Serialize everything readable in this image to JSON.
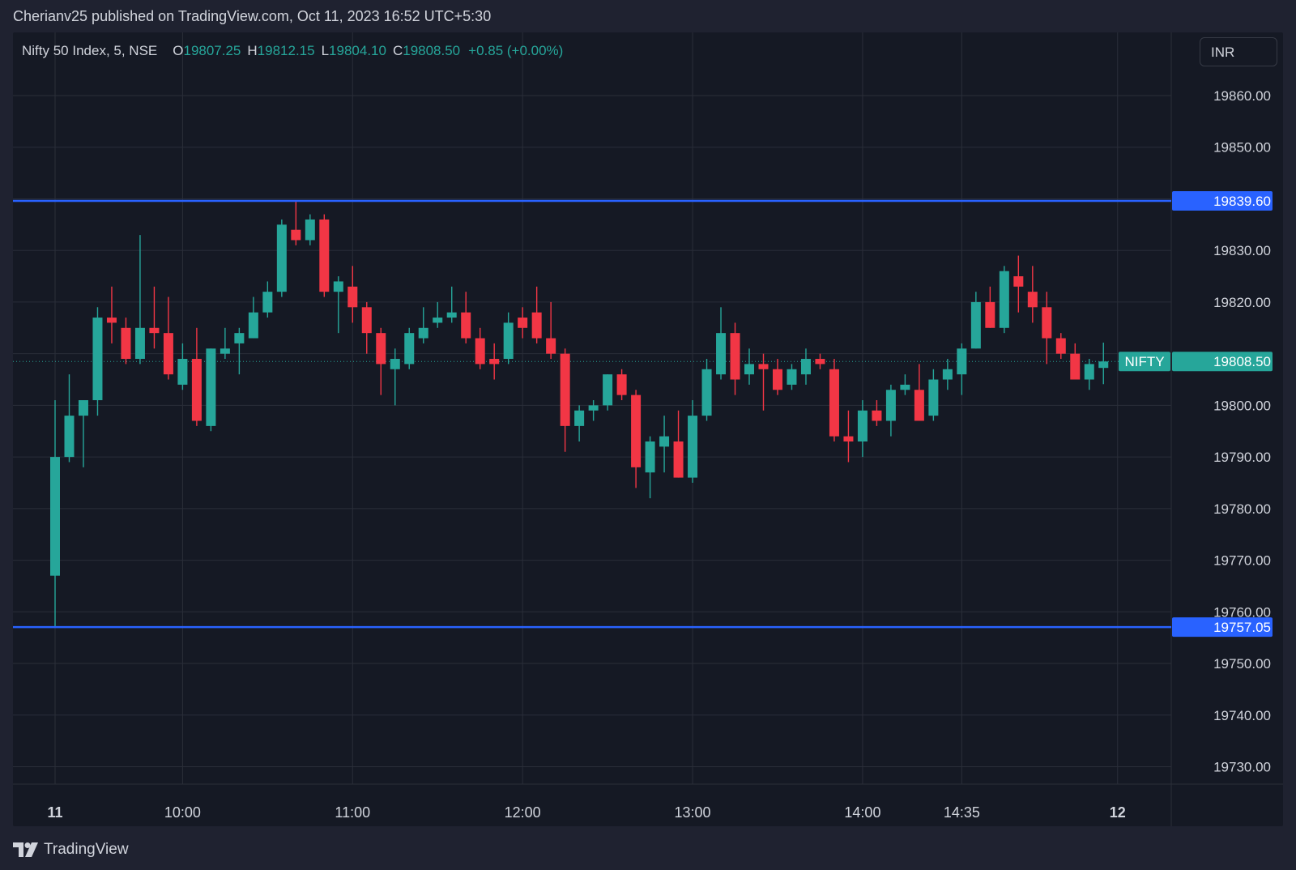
{
  "header": {
    "published_line": "Cherianv25 published on TradingView.com, Oct 11, 2023 16:52 UTC+5:30"
  },
  "legend": {
    "symbol": "Nifty 50 Index, 5, NSE",
    "open_label": "O",
    "open_value": "19807.25",
    "high_label": "H",
    "high_value": "19812.15",
    "low_label": "L",
    "low_value": "19804.10",
    "close_label": "C",
    "close_value": "19808.50",
    "change": "+0.85 (+0.00%)"
  },
  "currency_button": "INR",
  "footer": {
    "brand": "TradingView"
  },
  "colors": {
    "up": "#26a69a",
    "down": "#f23645",
    "hline": "#2962ff",
    "grid": "#2a2e39",
    "text": "#d1d4dc",
    "background": "#151924"
  },
  "chart_data": {
    "type": "candlestick",
    "yticks": [
      19860,
      19850,
      19840,
      19830,
      19820,
      19810,
      19800,
      19790,
      19780,
      19770,
      19760,
      19750,
      19740,
      19730
    ],
    "ytick_labels": [
      "19860.00",
      "19850.00",
      "",
      "19830.00",
      "19820.00",
      "",
      "19800.00",
      "19790.00",
      "19780.00",
      "19770.00",
      "19760.00",
      "19750.00",
      "19740.00",
      "19730.00"
    ],
    "xticks": [
      {
        "label": "11",
        "index": 0,
        "bold": true
      },
      {
        "label": "10:00",
        "index": 9
      },
      {
        "label": "11:00",
        "index": 21
      },
      {
        "label": "12:00",
        "index": 33
      },
      {
        "label": "13:00",
        "index": 45
      },
      {
        "label": "14:00",
        "index": 57
      },
      {
        "label": "14:35",
        "index": 64
      },
      {
        "label": "12",
        "index": 75,
        "bold": true
      }
    ],
    "horizontal_lines": [
      {
        "value": 19839.6,
        "label": "19839.60"
      },
      {
        "value": 19757.05,
        "label": "19757.05"
      }
    ],
    "last_price": {
      "value": 19808.5,
      "label": "19808.50",
      "name": "NIFTY"
    },
    "candles": [
      {
        "o": 19767,
        "h": 19801,
        "l": 19757.05,
        "c": 19790
      },
      {
        "o": 19790,
        "h": 19806,
        "l": 19789,
        "c": 19798
      },
      {
        "o": 19798,
        "h": 19801,
        "l": 19788,
        "c": 19801
      },
      {
        "o": 19801,
        "h": 19819,
        "l": 19798,
        "c": 19817
      },
      {
        "o": 19817,
        "h": 19823,
        "l": 19812,
        "c": 19816
      },
      {
        "o": 19815,
        "h": 19817,
        "l": 19808,
        "c": 19809
      },
      {
        "o": 19809,
        "h": 19833,
        "l": 19808,
        "c": 19815
      },
      {
        "o": 19815,
        "h": 19823,
        "l": 19811,
        "c": 19814
      },
      {
        "o": 19814,
        "h": 19821,
        "l": 19805,
        "c": 19806
      },
      {
        "o": 19804,
        "h": 19812,
        "l": 19803,
        "c": 19809
      },
      {
        "o": 19809,
        "h": 19815,
        "l": 19796,
        "c": 19797
      },
      {
        "o": 19796,
        "h": 19811,
        "l": 19795,
        "c": 19811
      },
      {
        "o": 19810,
        "h": 19815,
        "l": 19809,
        "c": 19811
      },
      {
        "o": 19812,
        "h": 19815,
        "l": 19806,
        "c": 19814
      },
      {
        "o": 19813,
        "h": 19821,
        "l": 19813,
        "c": 19818
      },
      {
        "o": 19818,
        "h": 19824,
        "l": 19817,
        "c": 19822
      },
      {
        "o": 19822,
        "h": 19836,
        "l": 19821,
        "c": 19835
      },
      {
        "o": 19834,
        "h": 19839.6,
        "l": 19831,
        "c": 19832
      },
      {
        "o": 19832,
        "h": 19837,
        "l": 19831,
        "c": 19836
      },
      {
        "o": 19836,
        "h": 19837,
        "l": 19821,
        "c": 19822
      },
      {
        "o": 19822,
        "h": 19825,
        "l": 19814,
        "c": 19824
      },
      {
        "o": 19823,
        "h": 19827,
        "l": 19816,
        "c": 19819
      },
      {
        "o": 19819,
        "h": 19820,
        "l": 19810,
        "c": 19814
      },
      {
        "o": 19814,
        "h": 19815,
        "l": 19802,
        "c": 19808
      },
      {
        "o": 19807,
        "h": 19811,
        "l": 19800,
        "c": 19809
      },
      {
        "o": 19808,
        "h": 19815,
        "l": 19807,
        "c": 19814
      },
      {
        "o": 19813,
        "h": 19819,
        "l": 19812,
        "c": 19815
      },
      {
        "o": 19816,
        "h": 19820,
        "l": 19815,
        "c": 19817
      },
      {
        "o": 19817,
        "h": 19823,
        "l": 19816,
        "c": 19818
      },
      {
        "o": 19818,
        "h": 19822,
        "l": 19812,
        "c": 19813
      },
      {
        "o": 19813,
        "h": 19815,
        "l": 19807,
        "c": 19808
      },
      {
        "o": 19809,
        "h": 19812,
        "l": 19805,
        "c": 19808
      },
      {
        "o": 19809,
        "h": 19818,
        "l": 19808,
        "c": 19816
      },
      {
        "o": 19817,
        "h": 19819,
        "l": 19813,
        "c": 19815
      },
      {
        "o": 19818,
        "h": 19823,
        "l": 19812,
        "c": 19813
      },
      {
        "o": 19813,
        "h": 19820,
        "l": 19809,
        "c": 19810
      },
      {
        "o": 19810,
        "h": 19811,
        "l": 19791,
        "c": 19796
      },
      {
        "o": 19796,
        "h": 19800,
        "l": 19793,
        "c": 19799
      },
      {
        "o": 19799,
        "h": 19801,
        "l": 19797,
        "c": 19800
      },
      {
        "o": 19800,
        "h": 19806,
        "l": 19799,
        "c": 19806
      },
      {
        "o": 19806,
        "h": 19807,
        "l": 19801,
        "c": 19802
      },
      {
        "o": 19802,
        "h": 19803,
        "l": 19784,
        "c": 19788
      },
      {
        "o": 19787,
        "h": 19794,
        "l": 19782,
        "c": 19793
      },
      {
        "o": 19792,
        "h": 19798,
        "l": 19787,
        "c": 19794
      },
      {
        "o": 19793,
        "h": 19799,
        "l": 19786,
        "c": 19786
      },
      {
        "o": 19786,
        "h": 19801,
        "l": 19785,
        "c": 19798
      },
      {
        "o": 19798,
        "h": 19809,
        "l": 19797,
        "c": 19807
      },
      {
        "o": 19806,
        "h": 19819,
        "l": 19805,
        "c": 19814
      },
      {
        "o": 19814,
        "h": 19816,
        "l": 19802,
        "c": 19805
      },
      {
        "o": 19806,
        "h": 19811,
        "l": 19804,
        "c": 19808
      },
      {
        "o": 19808,
        "h": 19810,
        "l": 19799,
        "c": 19807
      },
      {
        "o": 19807,
        "h": 19809,
        "l": 19802,
        "c": 19803
      },
      {
        "o": 19804,
        "h": 19808,
        "l": 19803,
        "c": 19807
      },
      {
        "o": 19806,
        "h": 19811,
        "l": 19804,
        "c": 19809
      },
      {
        "o": 19809,
        "h": 19810,
        "l": 19807,
        "c": 19808
      },
      {
        "o": 19807,
        "h": 19809,
        "l": 19793,
        "c": 19794
      },
      {
        "o": 19794,
        "h": 19799,
        "l": 19789,
        "c": 19793
      },
      {
        "o": 19793,
        "h": 19801,
        "l": 19790,
        "c": 19799
      },
      {
        "o": 19799,
        "h": 19801,
        "l": 19796,
        "c": 19797
      },
      {
        "o": 19797,
        "h": 19804,
        "l": 19794,
        "c": 19803
      },
      {
        "o": 19803,
        "h": 19806,
        "l": 19802,
        "c": 19804
      },
      {
        "o": 19803,
        "h": 19808,
        "l": 19797,
        "c": 19797
      },
      {
        "o": 19798,
        "h": 19807,
        "l": 19797,
        "c": 19805
      },
      {
        "o": 19805,
        "h": 19809,
        "l": 19803,
        "c": 19807
      },
      {
        "o": 19806,
        "h": 19812,
        "l": 19802,
        "c": 19811
      },
      {
        "o": 19811,
        "h": 19822,
        "l": 19811,
        "c": 19820
      },
      {
        "o": 19820,
        "h": 19823,
        "l": 19815,
        "c": 19815
      },
      {
        "o": 19815,
        "h": 19827,
        "l": 19814,
        "c": 19826
      },
      {
        "o": 19825,
        "h": 19829,
        "l": 19818,
        "c": 19823
      },
      {
        "o": 19822,
        "h": 19827,
        "l": 19816,
        "c": 19819
      },
      {
        "o": 19819,
        "h": 19822,
        "l": 19808,
        "c": 19813
      },
      {
        "o": 19813,
        "h": 19814,
        "l": 19809,
        "c": 19810
      },
      {
        "o": 19810,
        "h": 19812,
        "l": 19805,
        "c": 19805
      },
      {
        "o": 19805,
        "h": 19809,
        "l": 19803,
        "c": 19808
      },
      {
        "o": 19807.25,
        "h": 19812.15,
        "l": 19804.1,
        "c": 19808.5
      }
    ]
  }
}
